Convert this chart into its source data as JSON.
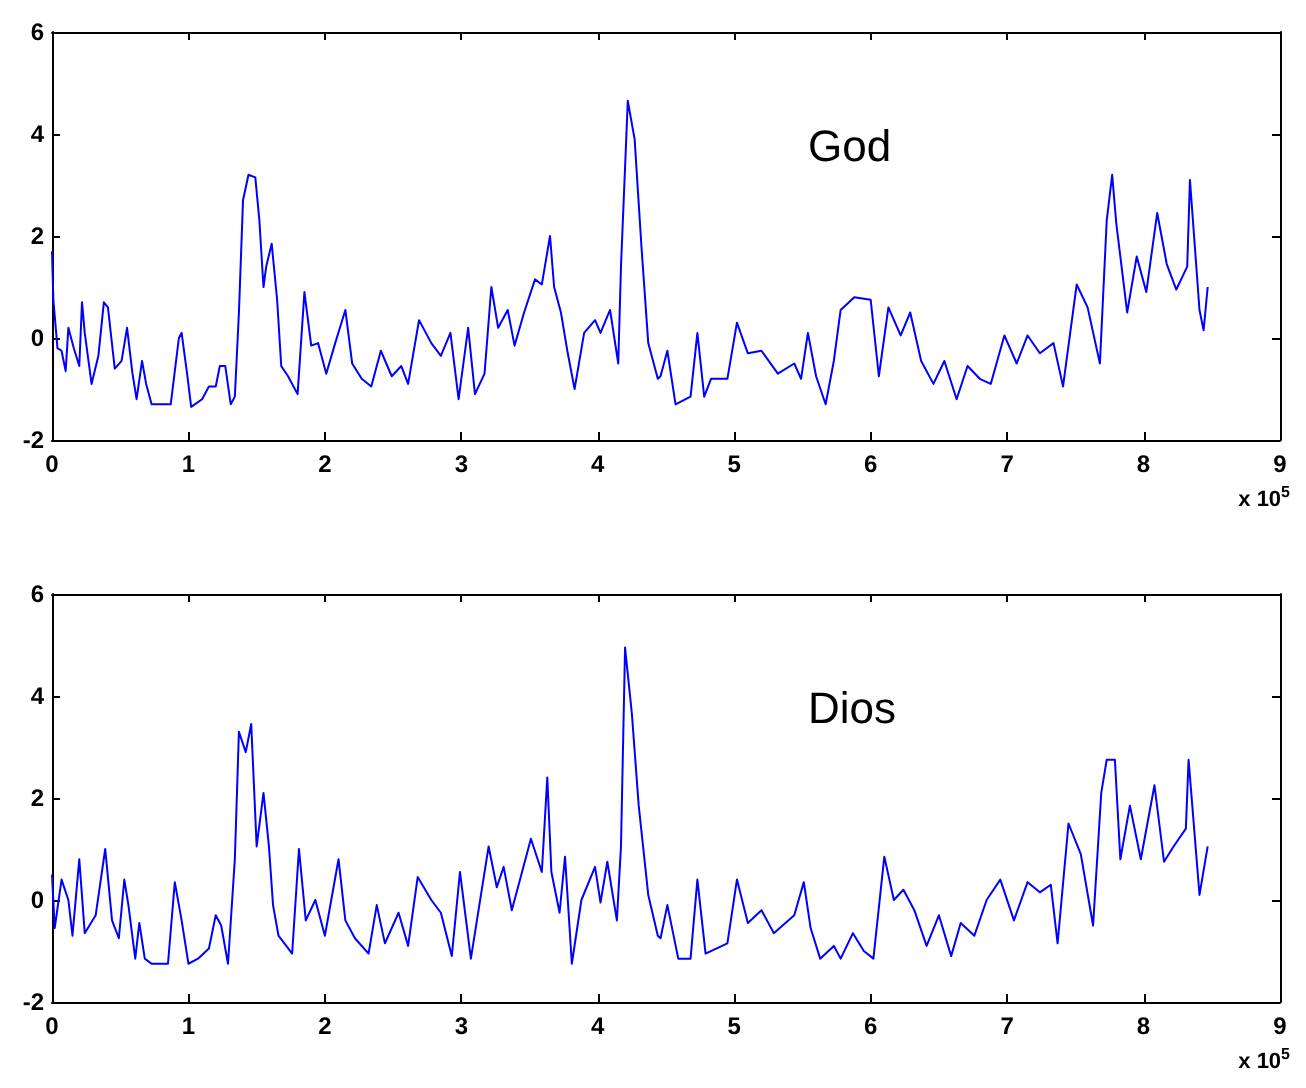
{
  "chart_data": [
    {
      "type": "line",
      "annotations": [
        "God"
      ],
      "xlabel": "x 10$^{5}$",
      "color": "#0000ff",
      "xlim": [
        0,
        9
      ],
      "xticks": [
        0,
        1,
        2,
        3,
        4,
        5,
        6,
        7,
        8,
        9
      ],
      "ylim": [
        -2,
        6
      ],
      "yticks": [
        -2,
        0,
        2,
        4,
        6
      ],
      "grid": false,
      "marker": "none",
      "line_style": "solid",
      "x": [
        0,
        0.01,
        0.04,
        0.07,
        0.1,
        0.12,
        0.16,
        0.2,
        0.22,
        0.24,
        0.29,
        0.34,
        0.38,
        0.41,
        0.46,
        0.51,
        0.55,
        0.59,
        0.62,
        0.66,
        0.69,
        0.73,
        0.87,
        0.93,
        0.95,
        0.99,
        1.02,
        1.1,
        1.15,
        1.2,
        1.23,
        1.27,
        1.31,
        1.34,
        1.37,
        1.4,
        1.44,
        1.49,
        1.52,
        1.55,
        1.57,
        1.61,
        1.65,
        1.68,
        1.73,
        1.8,
        1.85,
        1.9,
        1.95,
        2.01,
        2.07,
        2.15,
        2.2,
        2.27,
        2.34,
        2.41,
        2.49,
        2.56,
        2.61,
        2.69,
        2.78,
        2.85,
        2.92,
        2.98,
        3.05,
        3.1,
        3.17,
        3.22,
        3.27,
        3.34,
        3.39,
        3.46,
        3.54,
        3.59,
        3.65,
        3.68,
        3.73,
        3.78,
        3.83,
        3.9,
        3.98,
        4.02,
        4.09,
        4.15,
        4.17,
        4.22,
        4.27,
        4.32,
        4.37,
        4.44,
        4.46,
        4.51,
        4.57,
        4.68,
        4.73,
        4.78,
        4.83,
        4.95,
        5.02,
        5.1,
        5.2,
        5.32,
        5.44,
        5.49,
        5.54,
        5.6,
        5.67,
        5.73,
        5.78,
        5.88,
        6.0,
        6.06,
        6.13,
        6.22,
        6.29,
        6.37,
        6.46,
        6.54,
        6.63,
        6.71,
        6.8,
        6.88,
        6.98,
        7.07,
        7.15,
        7.24,
        7.34,
        7.41,
        7.51,
        7.59,
        7.68,
        7.73,
        7.77,
        7.8,
        7.88,
        7.95,
        8.02,
        8.1,
        8.17,
        8.24,
        8.32,
        8.34,
        8.41,
        8.44,
        8.47
      ],
      "values": [
        1.7,
        0.75,
        -0.2,
        -0.25,
        -0.65,
        0.2,
        -0.2,
        -0.55,
        0.7,
        0.1,
        -0.9,
        -0.35,
        0.7,
        0.6,
        -0.6,
        -0.45,
        0.2,
        -0.7,
        -1.2,
        -0.45,
        -0.9,
        -1.3,
        -1.3,
        0,
        0.1,
        -0.7,
        -1.35,
        -1.2,
        -0.95,
        -0.95,
        -0.55,
        -0.55,
        -1.3,
        -1.15,
        0.5,
        2.7,
        3.2,
        3.15,
        2.3,
        1.0,
        1.4,
        1.85,
        0.75,
        -0.55,
        -0.75,
        -1.1,
        0.9,
        -0.15,
        -0.1,
        -0.7,
        -0.15,
        0.55,
        -0.5,
        -0.8,
        -0.95,
        -0.25,
        -0.75,
        -0.55,
        -0.9,
        0.35,
        -0.1,
        -0.35,
        0.1,
        -1.2,
        0.2,
        -1.1,
        -0.7,
        1.0,
        0.2,
        0.55,
        -0.15,
        0.5,
        1.15,
        1.05,
        2.0,
        1.0,
        0.5,
        -0.3,
        -1.0,
        0.1,
        0.35,
        0.1,
        0.55,
        -0.5,
        1.4,
        4.65,
        3.9,
        1.8,
        -0.1,
        -0.8,
        -0.75,
        -0.25,
        -1.3,
        -1.15,
        0.1,
        -1.15,
        -0.8,
        -0.8,
        0.3,
        -0.3,
        -0.25,
        -0.7,
        -0.5,
        -0.8,
        0.1,
        -0.75,
        -1.3,
        -0.45,
        0.55,
        0.8,
        0.75,
        -0.75,
        0.6,
        0.05,
        0.5,
        -0.45,
        -0.9,
        -0.45,
        -1.2,
        -0.55,
        -0.8,
        -0.9,
        0.05,
        -0.5,
        0.05,
        -0.3,
        -0.1,
        -0.95,
        1.05,
        0.6,
        -0.5,
        2.3,
        3.2,
        2.25,
        0.5,
        1.6,
        0.9,
        2.45,
        1.45,
        0.95,
        1.4,
        3.1,
        0.55,
        0.15,
        1.0
      ]
    },
    {
      "type": "line",
      "annotations": [
        "Dios"
      ],
      "xlabel": "x 10$^{5}$",
      "color": "#0000ff",
      "xlim": [
        0,
        9
      ],
      "xticks": [
        0,
        1,
        2,
        3,
        4,
        5,
        6,
        7,
        8,
        9
      ],
      "ylim": [
        -2,
        6
      ],
      "yticks": [
        -2,
        0,
        2,
        4,
        6
      ],
      "grid": false,
      "marker": "none",
      "line_style": "solid",
      "x": [
        0,
        0.02,
        0.07,
        0.12,
        0.15,
        0.2,
        0.24,
        0.32,
        0.39,
        0.44,
        0.49,
        0.53,
        0.56,
        0.61,
        0.64,
        0.68,
        0.73,
        0.85,
        0.9,
        0.95,
        1.0,
        1.07,
        1.15,
        1.2,
        1.24,
        1.29,
        1.34,
        1.37,
        1.42,
        1.46,
        1.5,
        1.55,
        1.59,
        1.62,
        1.66,
        1.76,
        1.81,
        1.86,
        1.93,
        2.0,
        2.1,
        2.15,
        2.22,
        2.32,
        2.38,
        2.44,
        2.54,
        2.61,
        2.68,
        2.78,
        2.85,
        2.93,
        2.99,
        3.07,
        3.2,
        3.26,
        3.31,
        3.37,
        3.44,
        3.51,
        3.59,
        3.63,
        3.66,
        3.72,
        3.76,
        3.81,
        3.88,
        3.98,
        4.02,
        4.07,
        4.14,
        4.17,
        4.2,
        4.25,
        4.3,
        4.37,
        4.44,
        4.46,
        4.51,
        4.59,
        4.68,
        4.73,
        4.79,
        4.95,
        5.02,
        5.1,
        5.2,
        5.29,
        5.44,
        5.51,
        5.56,
        5.63,
        5.73,
        5.78,
        5.87,
        5.95,
        6.02,
        6.1,
        6.17,
        6.24,
        6.32,
        6.41,
        6.5,
        6.59,
        6.66,
        6.76,
        6.85,
        6.95,
        7.05,
        7.15,
        7.24,
        7.32,
        7.37,
        7.45,
        7.54,
        7.63,
        7.69,
        7.73,
        7.79,
        7.83,
        7.9,
        7.98,
        8.08,
        8.15,
        8.22,
        8.31,
        8.33,
        8.41,
        8.47
      ],
      "values": [
        0.5,
        -0.55,
        0.4,
        0,
        -0.7,
        0.8,
        -0.65,
        -0.3,
        1.0,
        -0.4,
        -0.75,
        0.4,
        -0.1,
        -1.15,
        -0.45,
        -1.15,
        -1.25,
        -1.25,
        0.35,
        -0.4,
        -1.25,
        -1.15,
        -0.95,
        -0.3,
        -0.5,
        -1.25,
        0.8,
        3.3,
        2.9,
        3.45,
        1.05,
        2.1,
        1.05,
        -0.1,
        -0.7,
        -1.05,
        1.0,
        -0.4,
        0,
        -0.7,
        0.8,
        -0.4,
        -0.75,
        -1.05,
        -0.1,
        -0.85,
        -0.25,
        -0.9,
        0.45,
        0,
        -0.25,
        -1.1,
        0.55,
        -1.15,
        1.05,
        0.25,
        0.65,
        -0.2,
        0.5,
        1.2,
        0.55,
        2.4,
        0.55,
        -0.25,
        0.85,
        -1.25,
        0,
        0.65,
        -0.05,
        0.75,
        -0.4,
        1.05,
        4.95,
        3.65,
        1.85,
        0.1,
        -0.7,
        -0.75,
        -0.1,
        -1.15,
        -1.15,
        0.4,
        -1.05,
        -0.85,
        0.4,
        -0.45,
        -0.2,
        -0.65,
        -0.3,
        0.35,
        -0.55,
        -1.15,
        -0.9,
        -1.15,
        -0.65,
        -1.0,
        -1.15,
        0.85,
        0,
        0.2,
        -0.2,
        -0.9,
        -0.3,
        -1.1,
        -0.45,
        -0.7,
        0,
        0.4,
        -0.4,
        0.35,
        0.15,
        0.3,
        -0.85,
        1.5,
        0.9,
        -0.5,
        2.1,
        2.75,
        2.75,
        0.8,
        1.85,
        0.8,
        2.25,
        0.75,
        1.05,
        1.4,
        2.75,
        0.1,
        1.05
      ]
    }
  ]
}
